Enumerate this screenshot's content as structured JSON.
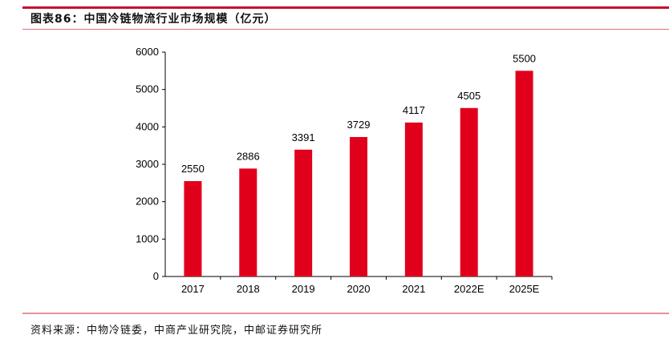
{
  "header": {
    "title": "图表86：中国冷链物流行业市场规模（亿元）"
  },
  "footer": {
    "source": "资料来源：中物冷链委，中商产业研究院，中邮证券研究所"
  },
  "chart_data": {
    "type": "bar",
    "title": "中国冷链物流行业市场规模（亿元）",
    "categories": [
      "2017",
      "2018",
      "2019",
      "2020",
      "2021",
      "2022E",
      "2025E"
    ],
    "values": [
      2550,
      2886,
      3391,
      3729,
      4117,
      4505,
      5500
    ],
    "ylim": [
      0,
      6000
    ],
    "yticks": [
      0,
      1000,
      2000,
      3000,
      4000,
      5000,
      6000
    ],
    "grid": false,
    "bar_color": "#e0001b",
    "xlabel": "",
    "ylabel": ""
  }
}
